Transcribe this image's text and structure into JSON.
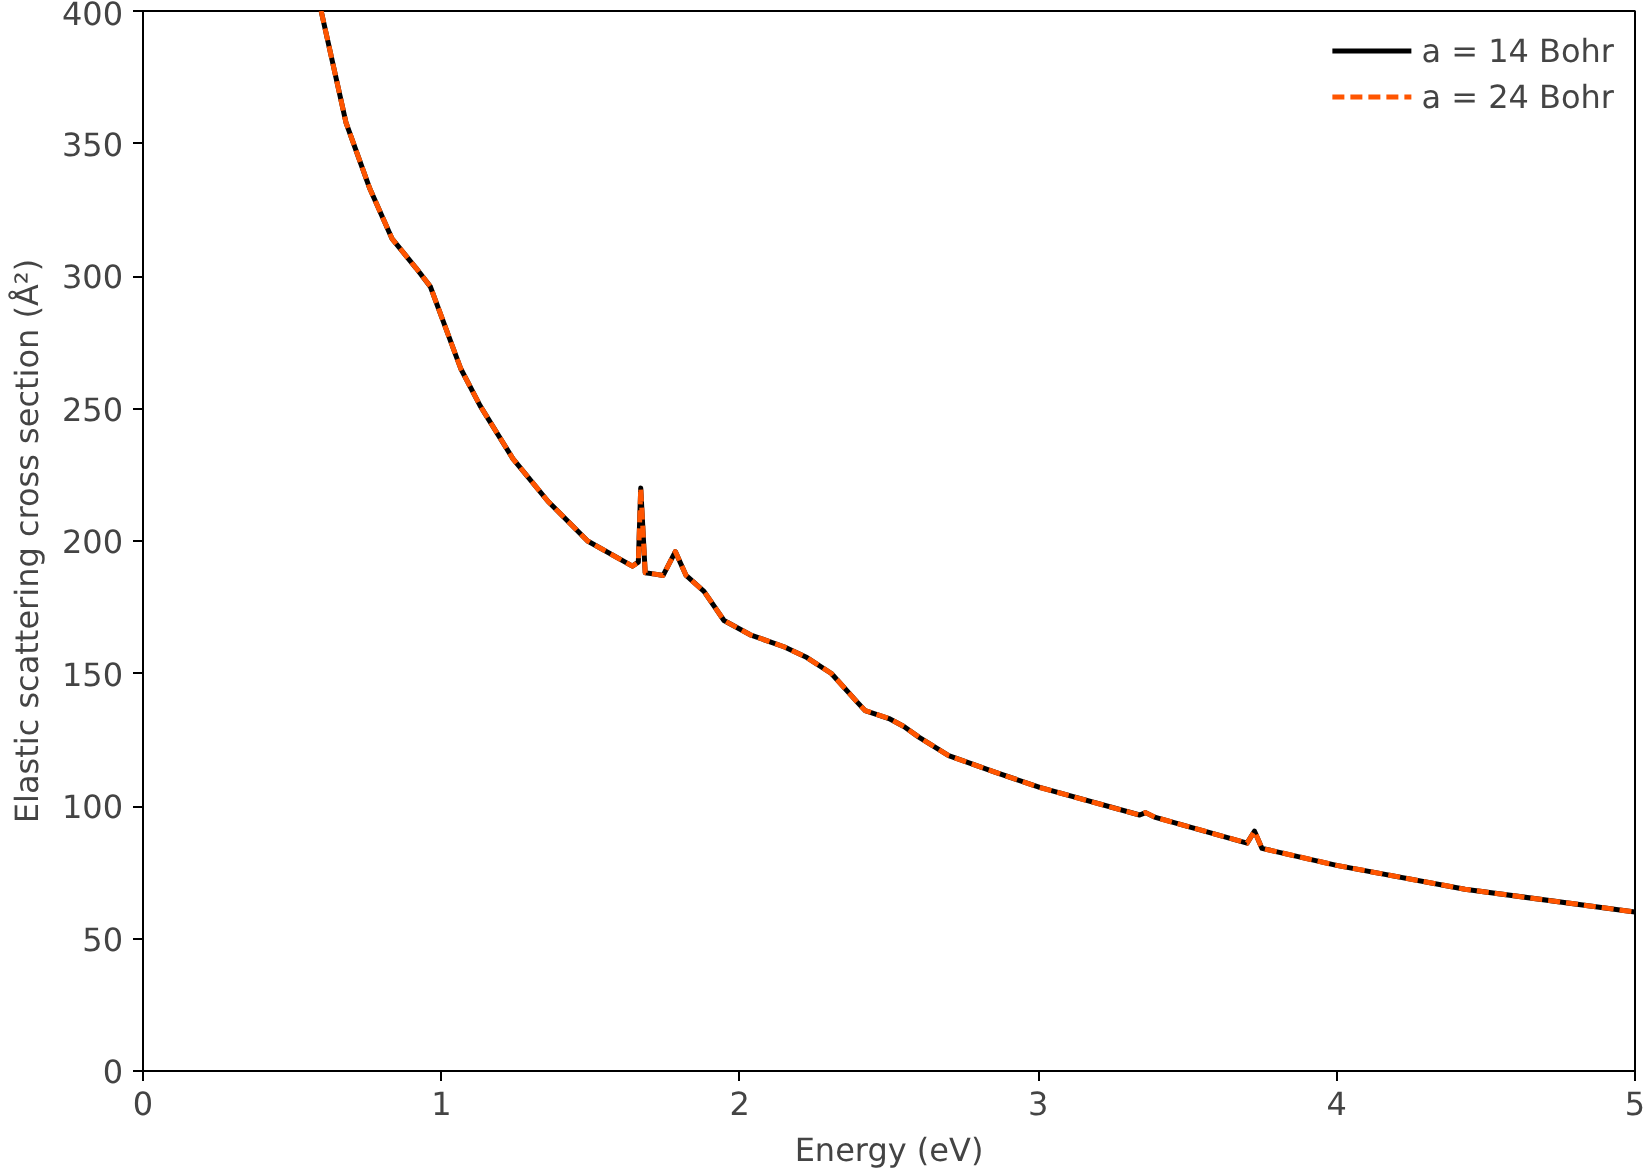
{
  "chart_data": {
    "type": "line",
    "xlabel": "Energy (eV)",
    "ylabel": "Elastic scattering cross section (Å²)",
    "xlim": [
      0,
      5
    ],
    "ylim": [
      0,
      400
    ],
    "xticks": [
      0,
      1,
      2,
      3,
      4,
      5
    ],
    "yticks": [
      0,
      50,
      100,
      150,
      200,
      250,
      300,
      350,
      400
    ],
    "grid": false,
    "legend": "top right",
    "marker": "none",
    "series": [
      {
        "name": "a = 14 Bohr",
        "color": "#000000",
        "line_style": "solid",
        "x": [
          0.597,
          0.68,
          0.76,
          0.835,
          0.915,
          0.963,
          1.065,
          1.13,
          1.24,
          1.357,
          1.49,
          1.64,
          1.66,
          1.668,
          1.683,
          1.716,
          1.743,
          1.784,
          1.82,
          1.88,
          1.947,
          2.035,
          2.15,
          2.225,
          2.307,
          2.395,
          2.42,
          2.5,
          2.55,
          2.6,
          2.7,
          2.85,
          3.005,
          3.34,
          3.36,
          3.39,
          3.7,
          3.725,
          3.75,
          4.0,
          4.43,
          5.0
        ],
        "values": [
          400,
          358,
          333,
          314,
          303,
          296,
          265,
          251,
          231,
          215,
          200,
          190.5,
          192,
          220,
          188,
          187.5,
          187,
          196,
          187,
          181,
          170,
          164.6,
          160,
          156,
          150,
          139,
          136,
          133,
          130,
          126,
          119,
          113,
          107,
          96.6,
          97.5,
          95.8,
          86,
          90.5,
          84,
          77.6,
          68.6,
          60
        ]
      },
      {
        "name": "a = 24 Bohr",
        "color": "#ff5500",
        "line_style": "dashed",
        "x": [
          0.597,
          0.68,
          0.76,
          0.835,
          0.915,
          0.963,
          1.065,
          1.13,
          1.24,
          1.357,
          1.49,
          1.64,
          1.66,
          1.668,
          1.683,
          1.716,
          1.743,
          1.784,
          1.82,
          1.88,
          1.947,
          2.035,
          2.15,
          2.225,
          2.307,
          2.395,
          2.42,
          2.5,
          2.55,
          2.6,
          2.7,
          2.85,
          3.005,
          3.34,
          3.36,
          3.39,
          3.7,
          3.725,
          3.75,
          4.0,
          4.43,
          5.0
        ],
        "values": [
          400,
          358,
          333,
          314,
          303,
          296,
          265,
          251,
          231,
          215,
          200,
          190.5,
          192,
          220,
          188,
          187.5,
          187,
          196,
          187,
          181,
          170,
          164.6,
          160,
          156,
          150,
          139,
          136,
          133,
          130,
          126,
          119,
          113,
          107,
          96.6,
          97.5,
          95.8,
          86,
          90.5,
          84,
          77.6,
          68.6,
          60
        ]
      }
    ]
  }
}
